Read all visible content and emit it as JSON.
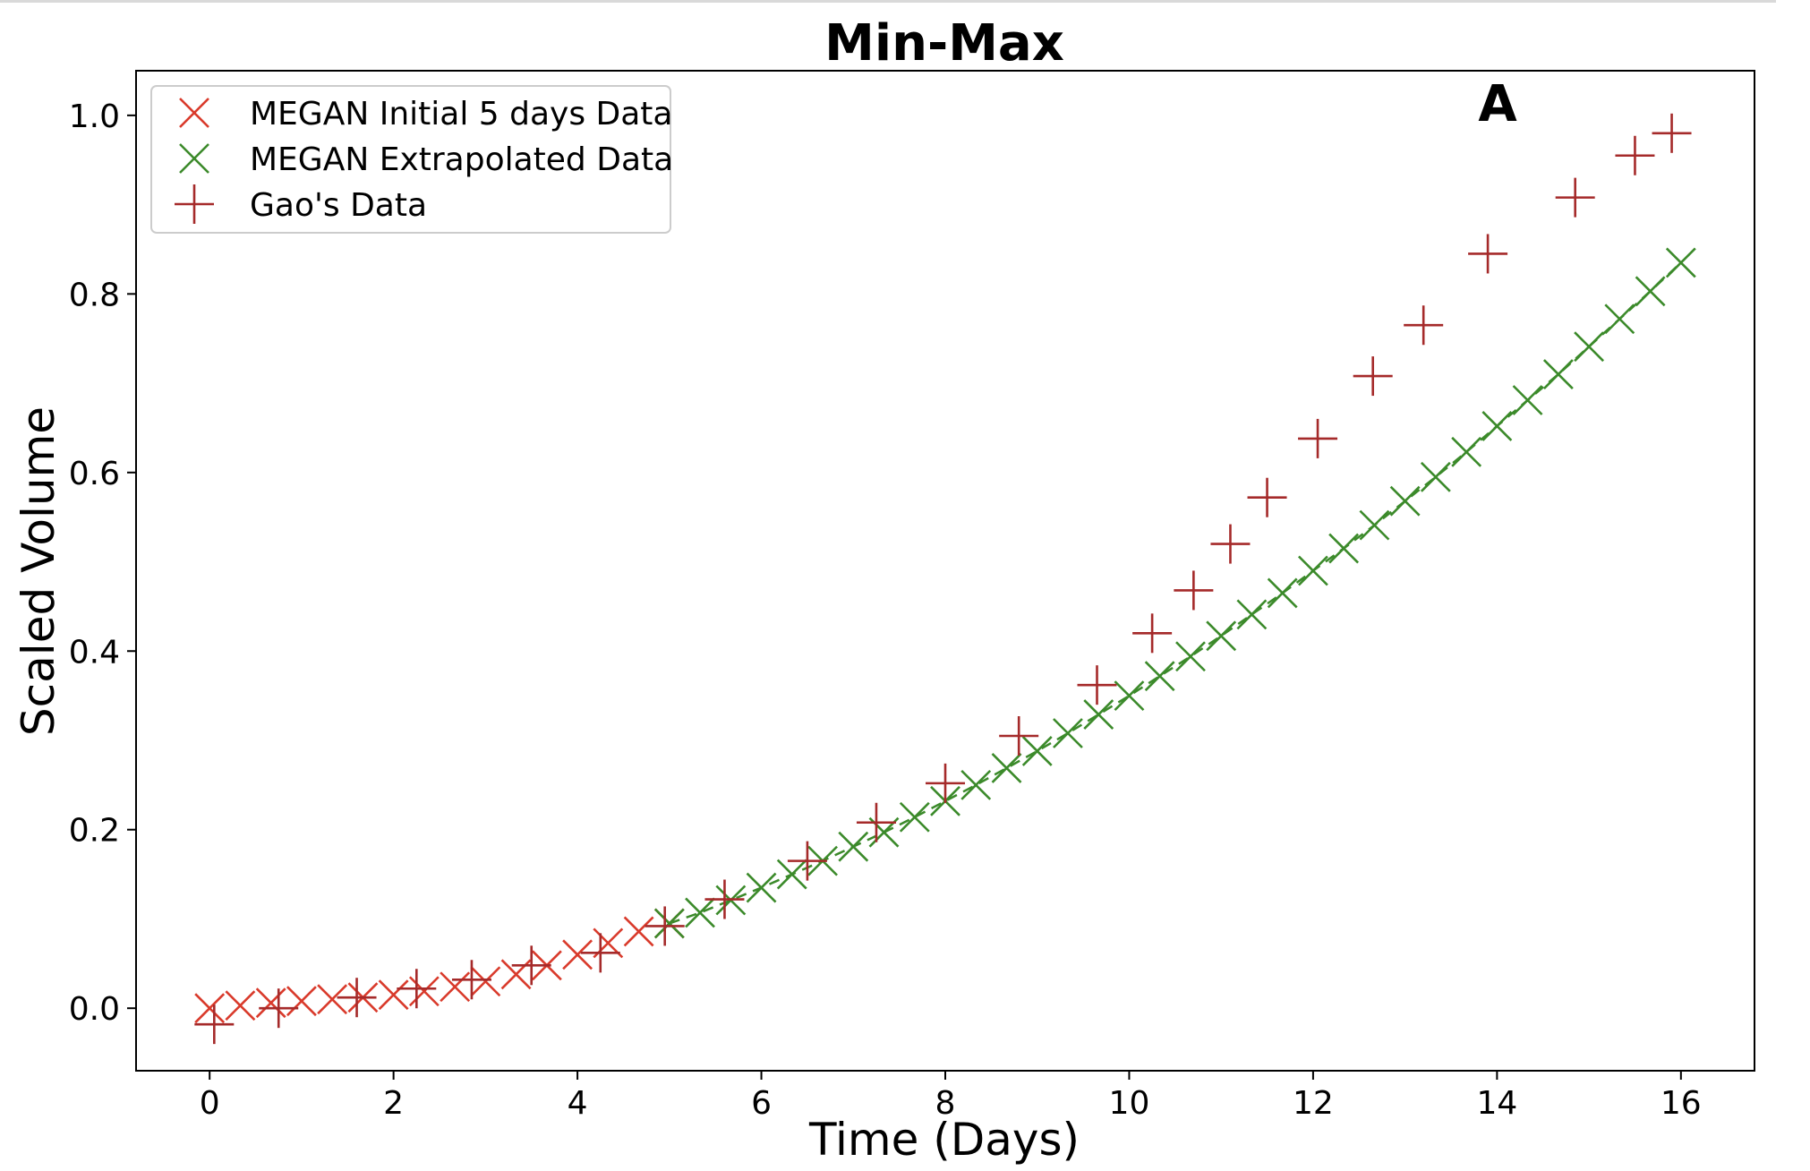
{
  "chart_data": {
    "type": "scatter",
    "title": "Min-Max",
    "panel_label": "A",
    "xlabel": "Time (Days)",
    "ylabel": "Scaled Volume",
    "xlim": [
      -0.8,
      16.8
    ],
    "ylim": [
      -0.07,
      1.05
    ],
    "xticks": [
      0,
      2,
      4,
      6,
      8,
      10,
      12,
      14,
      16
    ],
    "yticks": [
      0.0,
      0.2,
      0.4,
      0.6,
      0.8,
      1.0
    ],
    "xtick_labels": [
      "0",
      "2",
      "4",
      "6",
      "8",
      "10",
      "12",
      "14",
      "16"
    ],
    "ytick_labels": [
      "0.0",
      "0.2",
      "0.4",
      "0.6",
      "0.8",
      "1.0"
    ],
    "grid": false,
    "legend_position": "upper-left",
    "series": [
      {
        "name": "MEGAN Initial 5 days Data",
        "marker": "x",
        "color": "#d93a2b",
        "x": [
          0.0,
          0.333,
          0.667,
          1.0,
          1.333,
          1.667,
          2.0,
          2.333,
          2.667,
          3.0,
          3.333,
          3.667,
          4.0,
          4.333,
          4.667,
          5.0
        ],
        "y": [
          0.0,
          0.003,
          0.006,
          0.008,
          0.01,
          0.012,
          0.015,
          0.019,
          0.024,
          0.03,
          0.038,
          0.048,
          0.06,
          0.073,
          0.086,
          0.095
        ]
      },
      {
        "name": "MEGAN Extrapolated Data",
        "marker": "x",
        "color": "#3b8a2a",
        "x": [
          5.0,
          5.333,
          5.667,
          6.0,
          6.333,
          6.667,
          7.0,
          7.333,
          7.667,
          8.0,
          8.333,
          8.667,
          9.0,
          9.333,
          9.667,
          10.0,
          10.333,
          10.667,
          11.0,
          11.333,
          11.667,
          12.0,
          12.333,
          12.667,
          13.0,
          13.333,
          13.667,
          14.0,
          14.333,
          14.667,
          15.0,
          15.333,
          15.667,
          16.0
        ],
        "y": [
          0.095,
          0.107,
          0.121,
          0.135,
          0.15,
          0.165,
          0.181,
          0.197,
          0.214,
          0.232,
          0.25,
          0.269,
          0.288,
          0.308,
          0.329,
          0.35,
          0.372,
          0.394,
          0.417,
          0.441,
          0.465,
          0.49,
          0.515,
          0.541,
          0.568,
          0.595,
          0.623,
          0.652,
          0.681,
          0.71,
          0.741,
          0.772,
          0.803,
          0.835
        ]
      },
      {
        "name": "Gao's Data",
        "marker": "+",
        "color": "#a52a2a",
        "x": [
          0.05,
          0.75,
          1.6,
          2.25,
          2.85,
          3.5,
          4.25,
          4.95,
          5.6,
          6.5,
          7.25,
          8.0,
          8.8,
          9.65,
          10.25,
          10.7,
          11.1,
          11.5,
          12.05,
          12.65,
          13.2,
          13.9,
          14.85,
          15.5,
          15.9
        ],
        "y": [
          -0.018,
          0.0,
          0.012,
          0.022,
          0.032,
          0.048,
          0.062,
          0.092,
          0.122,
          0.165,
          0.208,
          0.252,
          0.305,
          0.362,
          0.42,
          0.468,
          0.52,
          0.572,
          0.638,
          0.708,
          0.765,
          0.845,
          0.908,
          0.955,
          0.98
        ]
      }
    ],
    "dashed_fit_line": {
      "color": "#3b8a2a",
      "x": [
        5.0,
        16.0
      ]
    }
  }
}
